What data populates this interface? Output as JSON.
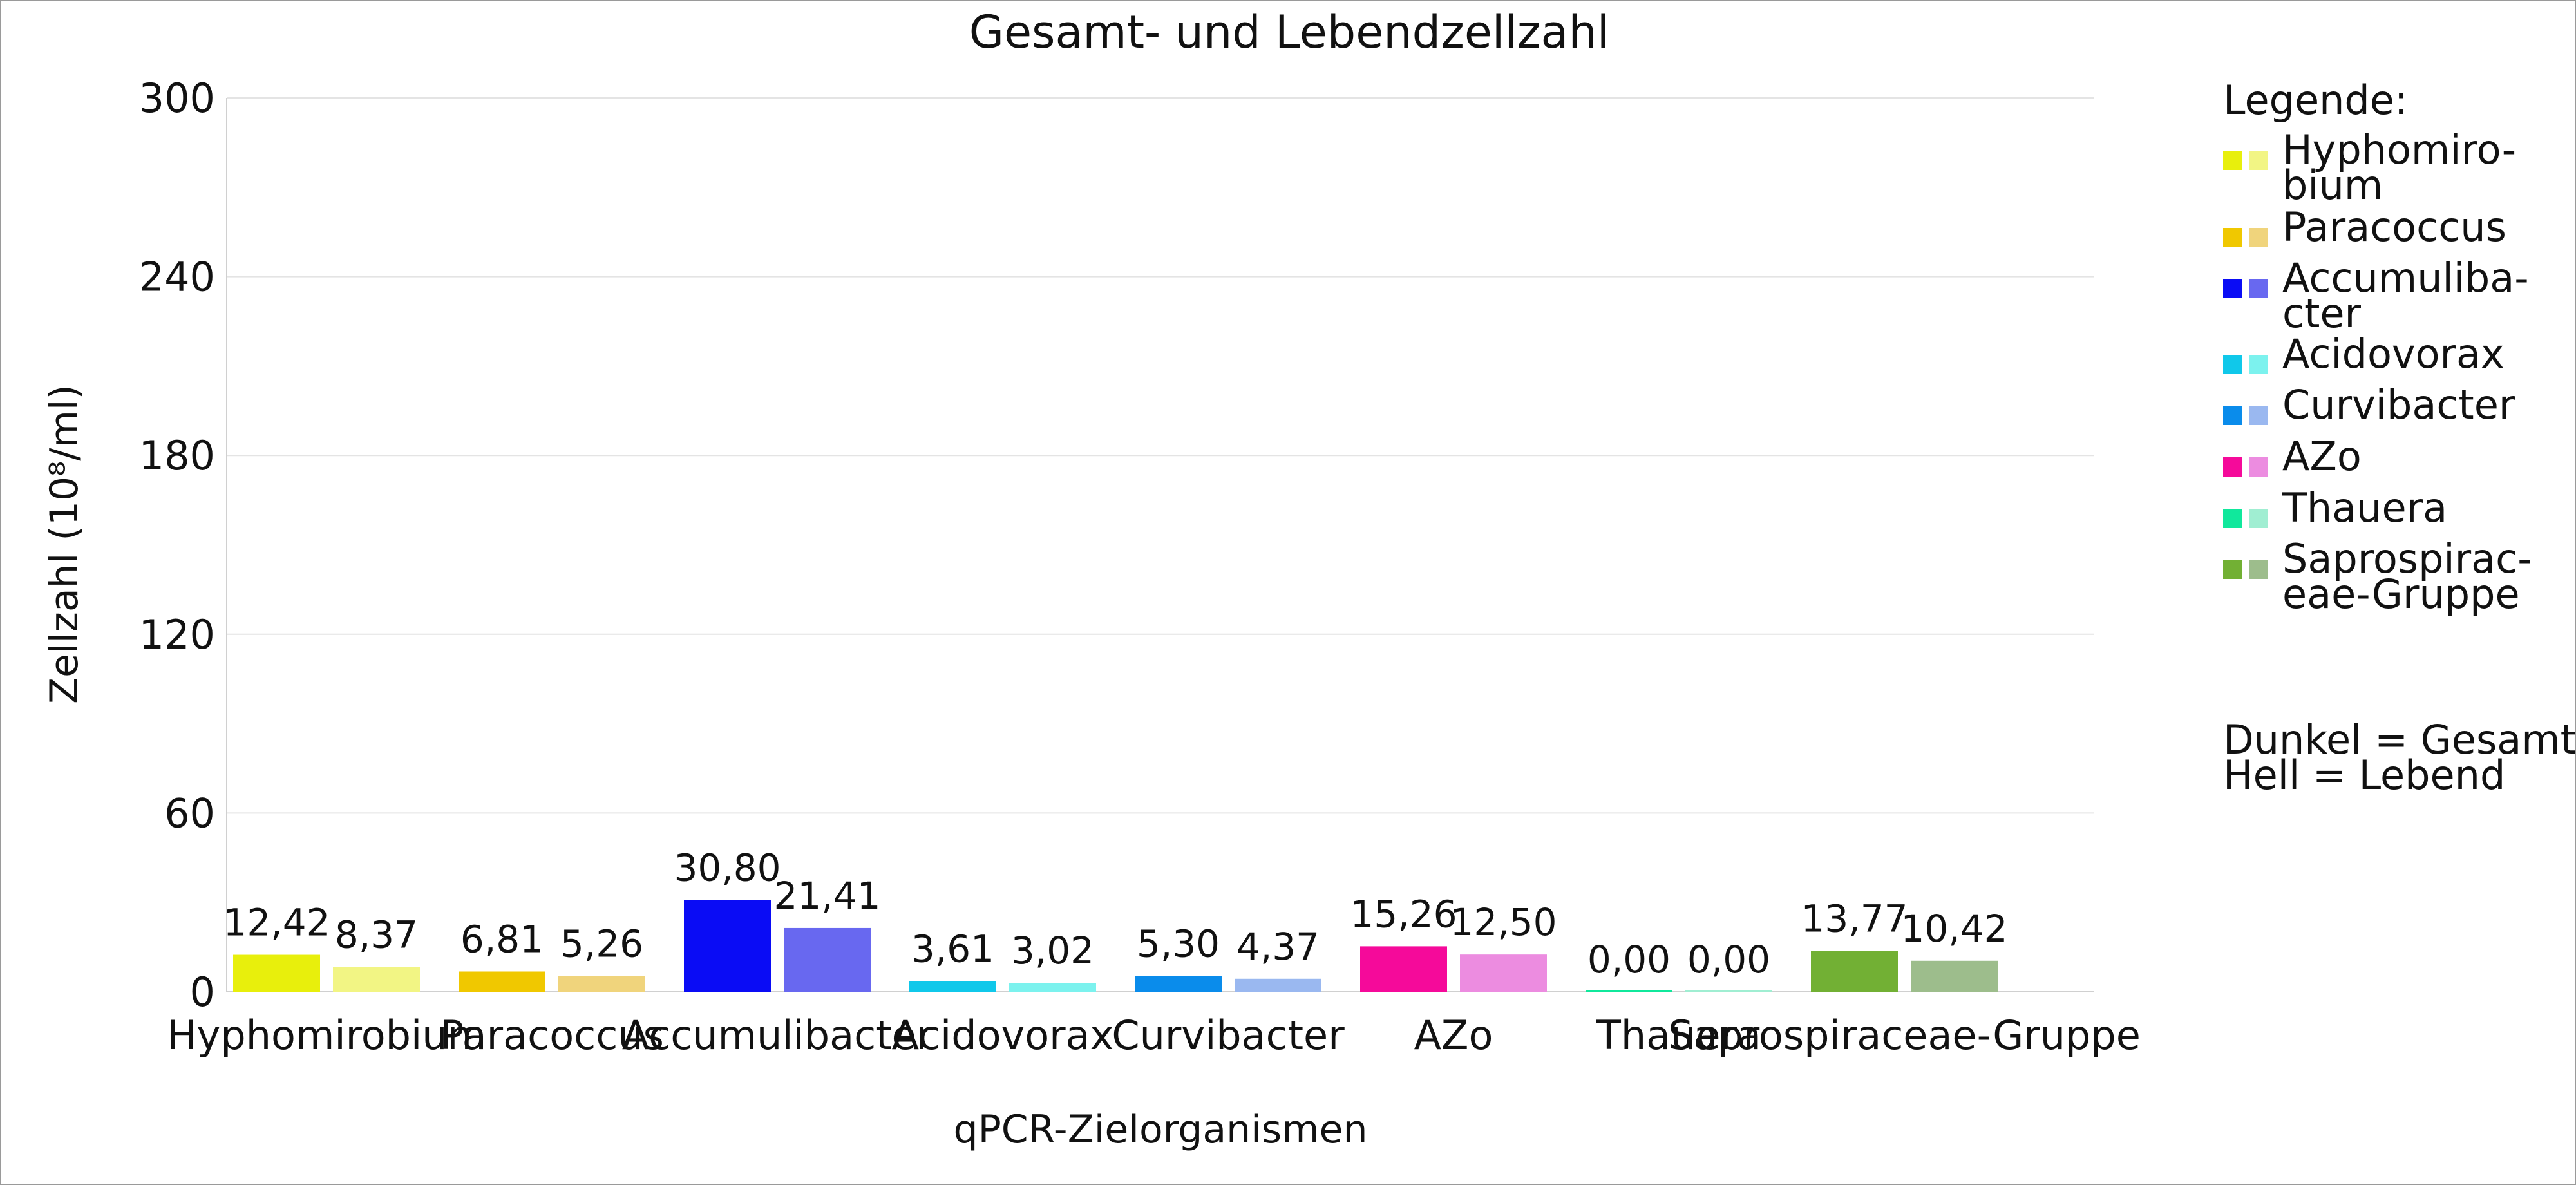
{
  "chart_data": {
    "type": "bar",
    "title": "Gesamt- und Lebendzellzahl",
    "xlabel": "qPCR-Zielorganismen",
    "ylabel": "Zellzahl (10⁸/ml)",
    "ylim": [
      0,
      300
    ],
    "yticks": [
      "0",
      "60",
      "120",
      "180",
      "240",
      "300"
    ],
    "grid": true,
    "categories": [
      "Hyphomirobium",
      "Paracoccus",
      "Accumulibacter",
      "Acidovorax",
      "Curvibacter",
      "AZo",
      "Thauera",
      "Saprospiraceae-Gruppe"
    ],
    "series": [
      {
        "values": [
          12.42,
          6.81,
          30.8,
          3.61,
          5.3,
          15.26,
          0.0,
          13.77
        ],
        "labels": [
          "12,42",
          "6,81",
          "30,80",
          "3,61",
          "5,30",
          "15,26",
          "0,00",
          "13,77"
        ],
        "colors": [
          "#e8ef0c",
          "#f0c800",
          "#0a0cf5",
          "#10c8ea",
          "#0a8ceb",
          "#f50a9a",
          "#10e89c",
          "#72b034"
        ]
      },
      {
        "values": [
          8.37,
          5.26,
          21.41,
          3.02,
          4.37,
          12.5,
          0.0,
          10.42
        ],
        "labels": [
          "8,37",
          "5,26",
          "21,41",
          "3,02",
          "4,37",
          "12,50",
          "0,00",
          "10,42"
        ],
        "colors": [
          "#f2f584",
          "#f0d47c",
          "#6868f0",
          "#7cf2ee",
          "#9ab8f0",
          "#ec8ce0",
          "#a0eed2",
          "#9dbd8c"
        ]
      }
    ],
    "legend": {
      "position": "right",
      "title": "Legende:",
      "items": [
        [
          "Hyphomiro-",
          "bium"
        ],
        [
          "Paracoccus"
        ],
        [
          "Accumuliba-",
          "cter"
        ],
        [
          "Acidovorax"
        ],
        [
          "Curvibacter"
        ],
        [
          "AZo"
        ],
        [
          "Thauera"
        ],
        [
          "Saprospirac-",
          "eae-Gruppe"
        ]
      ],
      "note": [
        "Dunkel = Gesamt",
        "Hell = Lebend"
      ]
    }
  }
}
